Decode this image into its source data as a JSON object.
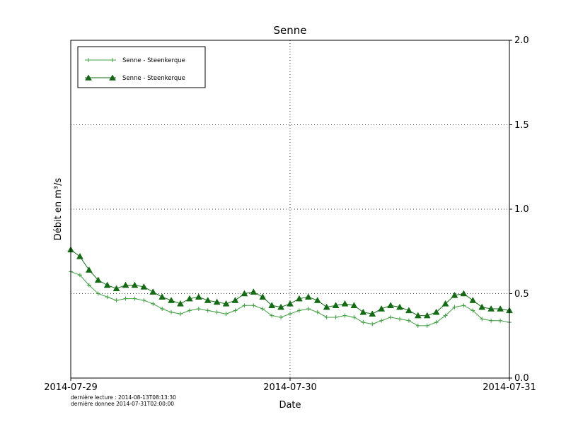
{
  "chart_data": {
    "type": "line",
    "title": "Senne",
    "xlabel": "Date",
    "ylabel": "Débit en m³/s",
    "ylim": [
      0.0,
      2.0
    ],
    "yticks": [
      0.0,
      0.5,
      1.0,
      1.5,
      2.0
    ],
    "ytick_labels": [
      "0.0",
      "0.5",
      "1.0",
      "1.5",
      "2.0"
    ],
    "xticks": [
      0,
      24,
      48
    ],
    "xtick_labels": [
      "2014-07-29",
      "2014-07-30",
      "2014-07-31"
    ],
    "x_range": [
      0,
      48
    ],
    "grid": true,
    "legend_position": "upper-left",
    "series": [
      {
        "name": "Senne - Steenkerque",
        "marker": "plus",
        "color": "#3f9e3f",
        "values": [
          0.63,
          0.61,
          0.55,
          0.5,
          0.48,
          0.46,
          0.47,
          0.47,
          0.46,
          0.44,
          0.41,
          0.39,
          0.38,
          0.4,
          0.41,
          0.4,
          0.39,
          0.38,
          0.4,
          0.43,
          0.43,
          0.41,
          0.37,
          0.36,
          0.38,
          0.4,
          0.41,
          0.39,
          0.36,
          0.36,
          0.37,
          0.36,
          0.33,
          0.32,
          0.34,
          0.36,
          0.35,
          0.34,
          0.31,
          0.31,
          0.33,
          0.37,
          0.42,
          0.43,
          0.4,
          0.35,
          0.34,
          0.34,
          0.33
        ]
      },
      {
        "name": "Senne - Steenkerque",
        "marker": "triangle",
        "color": "#156b15",
        "values": [
          0.76,
          0.72,
          0.64,
          0.58,
          0.55,
          0.53,
          0.55,
          0.55,
          0.54,
          0.51,
          0.48,
          0.46,
          0.44,
          0.47,
          0.48,
          0.46,
          0.45,
          0.44,
          0.46,
          0.5,
          0.51,
          0.48,
          0.43,
          0.42,
          0.44,
          0.47,
          0.48,
          0.46,
          0.42,
          0.43,
          0.44,
          0.43,
          0.39,
          0.38,
          0.41,
          0.43,
          0.42,
          0.4,
          0.37,
          0.37,
          0.39,
          0.44,
          0.49,
          0.5,
          0.46,
          0.42,
          0.41,
          0.41,
          0.4
        ]
      }
    ]
  },
  "footer": {
    "line1": "dernière lecture : 2014-08-13T08:13:30",
    "line2": "dernière donnee  2014-07-31T02:00:00"
  }
}
